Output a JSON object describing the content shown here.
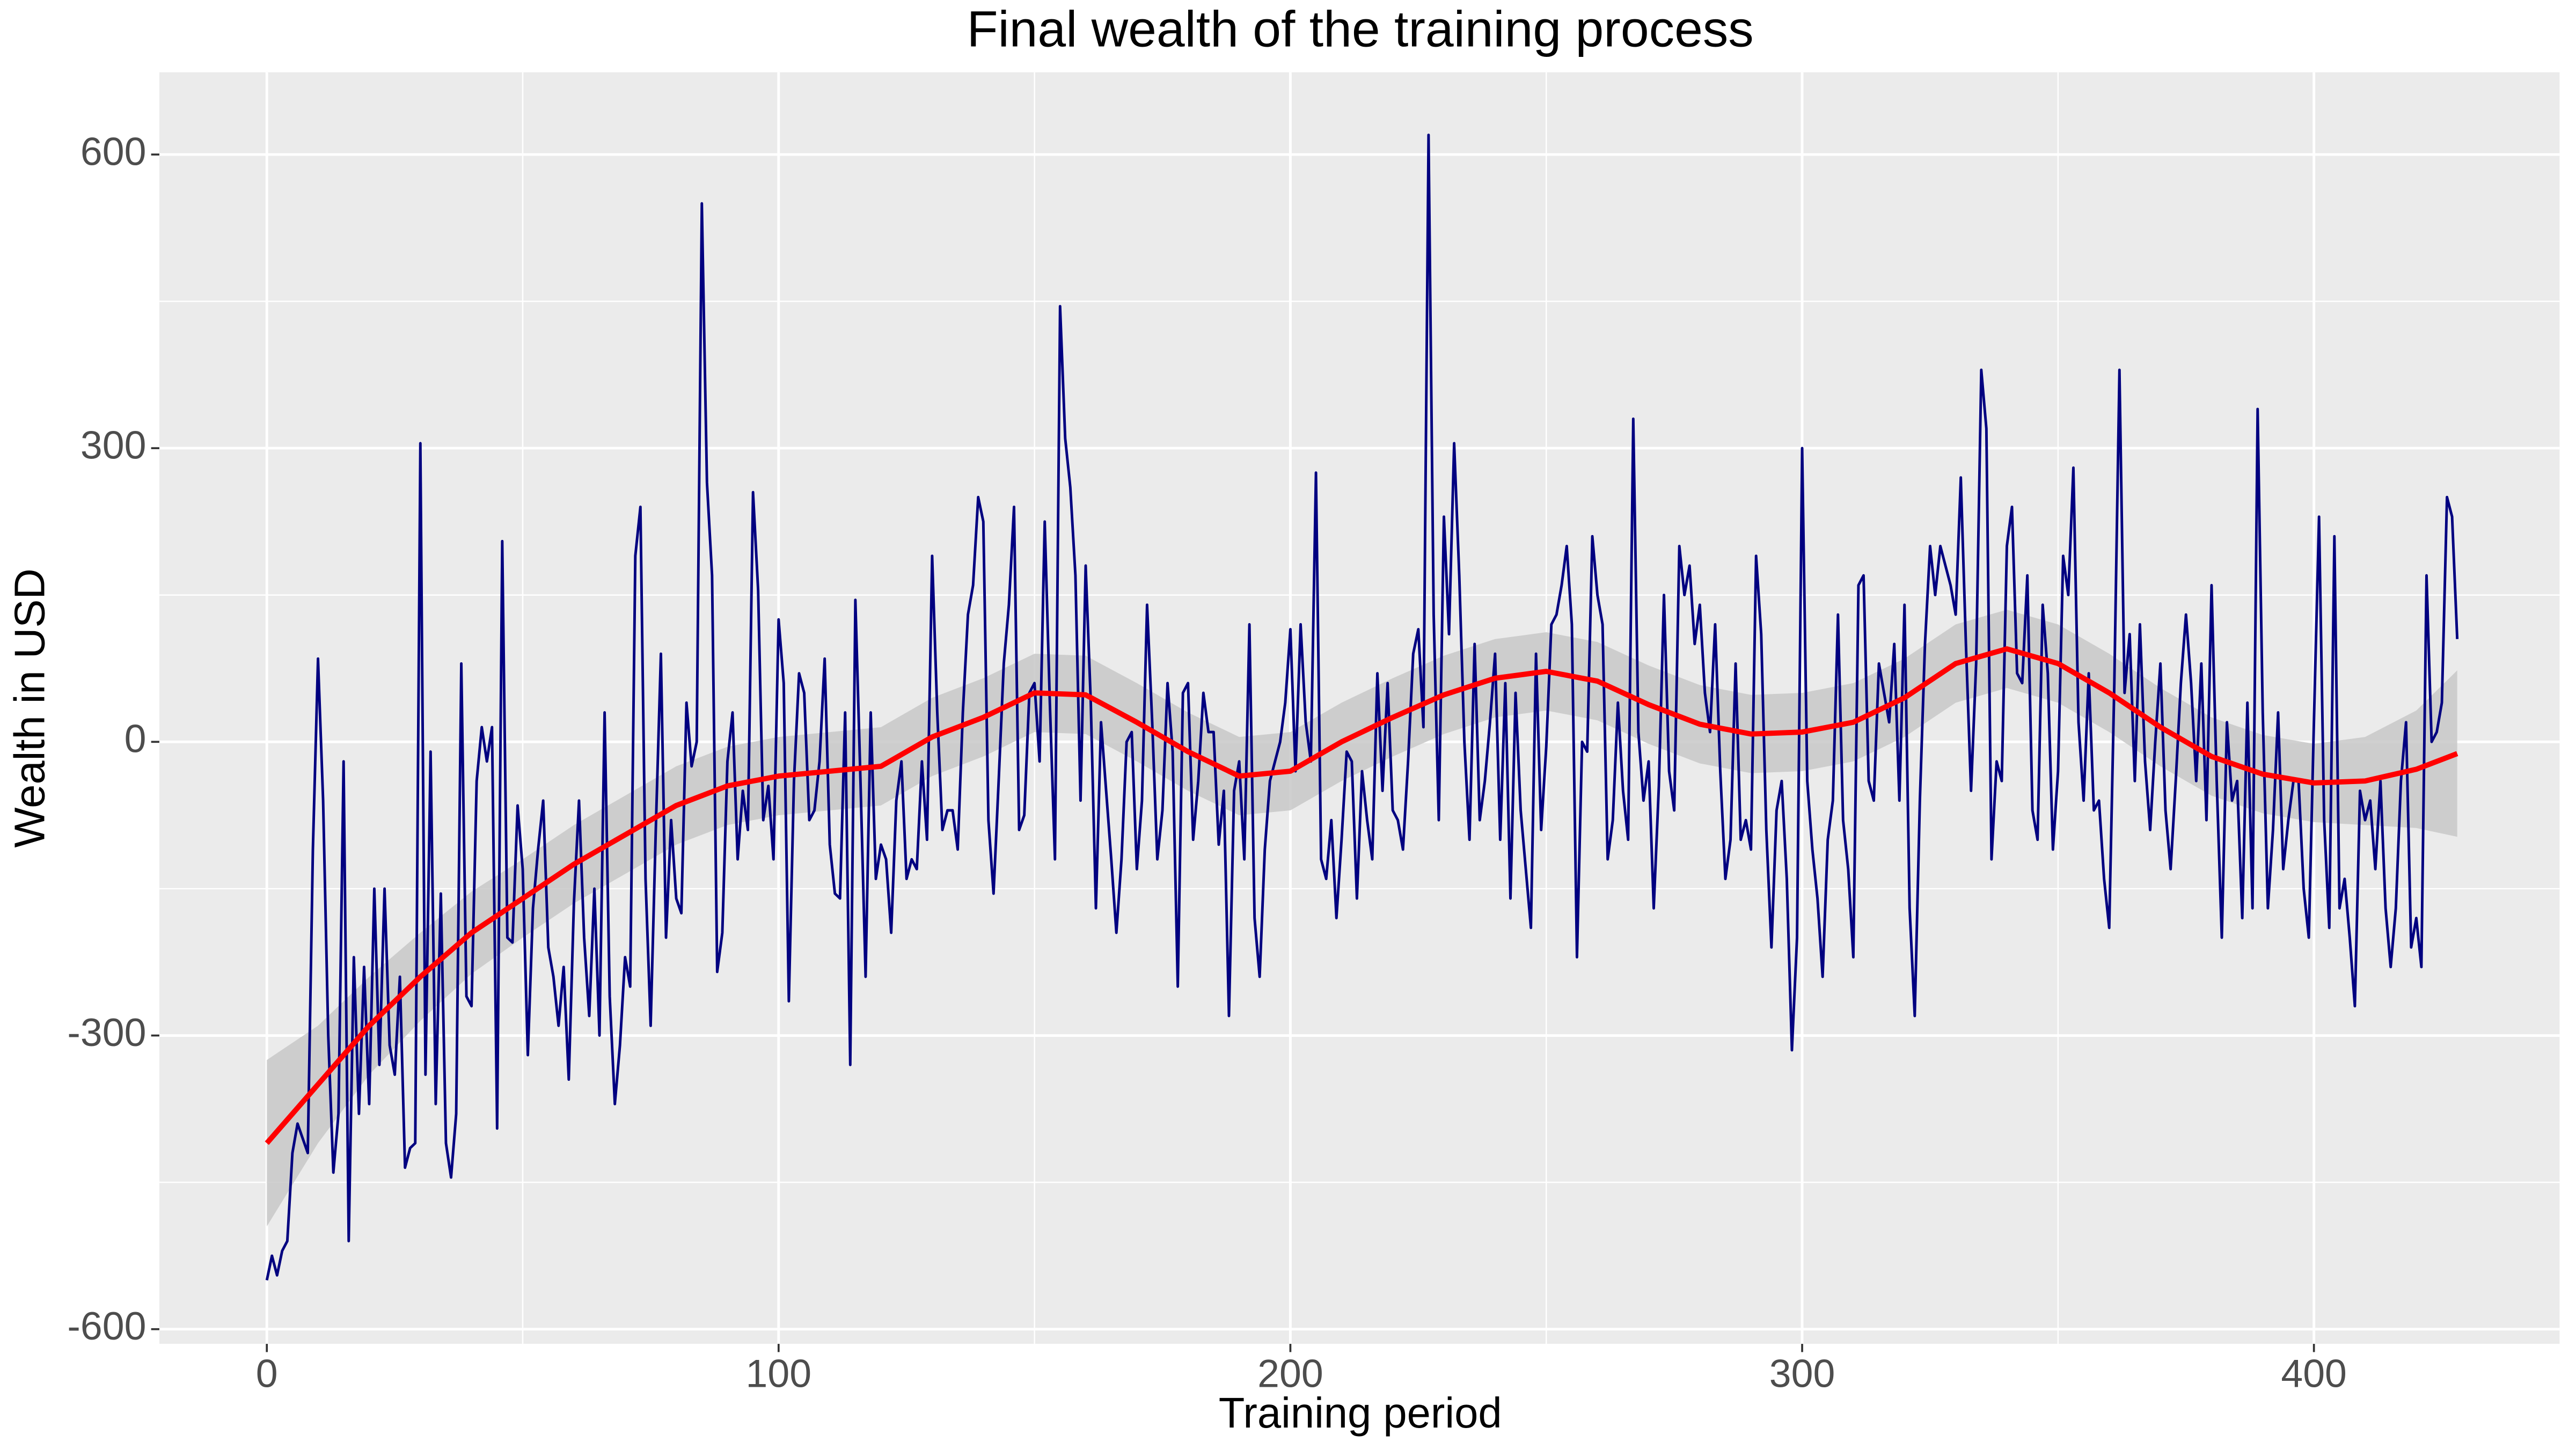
{
  "chart_data": {
    "type": "line",
    "title": "Final wealth of the training process",
    "x_label": "Training period",
    "y_label": "Wealth in USD",
    "xlim": [
      -21,
      448
    ],
    "ylim": [
      -615,
      684
    ],
    "xticks": [
      0,
      100,
      200,
      300,
      400
    ],
    "xminor": [
      50,
      150,
      250,
      350
    ],
    "yticks": [
      -600,
      -300,
      0,
      300,
      600
    ],
    "yminor": [
      -450,
      -150,
      150,
      450
    ],
    "grid": true,
    "background": "#ebebeb",
    "x": [
      0,
      1,
      2,
      3,
      4,
      5,
      6,
      7,
      8,
      9,
      10,
      11,
      12,
      13,
      14,
      15,
      16,
      17,
      18,
      19,
      20,
      21,
      22,
      23,
      24,
      25,
      26,
      27,
      28,
      29,
      30,
      31,
      32,
      33,
      34,
      35,
      36,
      37,
      38,
      39,
      40,
      41,
      42,
      43,
      44,
      45,
      46,
      47,
      48,
      49,
      50,
      51,
      52,
      53,
      54,
      55,
      56,
      57,
      58,
      59,
      60,
      61,
      62,
      63,
      64,
      65,
      66,
      67,
      68,
      69,
      70,
      71,
      72,
      73,
      74,
      75,
      76,
      77,
      78,
      79,
      80,
      81,
      82,
      83,
      84,
      85,
      86,
      87,
      88,
      89,
      90,
      91,
      92,
      93,
      94,
      95,
      96,
      97,
      98,
      99,
      100,
      101,
      102,
      103,
      104,
      105,
      106,
      107,
      108,
      109,
      110,
      111,
      112,
      113,
      114,
      115,
      116,
      117,
      118,
      119,
      120,
      121,
      122,
      123,
      124,
      125,
      126,
      127,
      128,
      129,
      130,
      131,
      132,
      133,
      134,
      135,
      136,
      137,
      138,
      139,
      140,
      141,
      142,
      143,
      144,
      145,
      146,
      147,
      148,
      149,
      150,
      151,
      152,
      153,
      154,
      155,
      156,
      157,
      158,
      159,
      160,
      161,
      162,
      163,
      164,
      165,
      166,
      167,
      168,
      169,
      170,
      171,
      172,
      173,
      174,
      175,
      176,
      177,
      178,
      179,
      180,
      181,
      182,
      183,
      184,
      185,
      186,
      187,
      188,
      189,
      190,
      191,
      192,
      193,
      194,
      195,
      196,
      197,
      198,
      199,
      200,
      201,
      202,
      203,
      204,
      205,
      206,
      207,
      208,
      209,
      210,
      211,
      212,
      213,
      214,
      215,
      216,
      217,
      218,
      219,
      220,
      221,
      222,
      223,
      224,
      225,
      226,
      227,
      228,
      229,
      230,
      231,
      232,
      233,
      234,
      235,
      236,
      237,
      238,
      239,
      240,
      241,
      242,
      243,
      244,
      245,
      246,
      247,
      248,
      249,
      250,
      251,
      252,
      253,
      254,
      255,
      256,
      257,
      258,
      259,
      260,
      261,
      262,
      263,
      264,
      265,
      266,
      267,
      268,
      269,
      270,
      271,
      272,
      273,
      274,
      275,
      276,
      277,
      278,
      279,
      280,
      281,
      282,
      283,
      284,
      285,
      286,
      287,
      288,
      289,
      290,
      291,
      292,
      293,
      294,
      295,
      296,
      297,
      298,
      299,
      300,
      301,
      302,
      303,
      304,
      305,
      306,
      307,
      308,
      309,
      310,
      311,
      312,
      313,
      314,
      315,
      316,
      317,
      318,
      319,
      320,
      321,
      322,
      323,
      324,
      325,
      326,
      327,
      328,
      329,
      330,
      331,
      332,
      333,
      334,
      335,
      336,
      337,
      338,
      339,
      340,
      341,
      342,
      343,
      344,
      345,
      346,
      347,
      348,
      349,
      350,
      351,
      352,
      353,
      354,
      355,
      356,
      357,
      358,
      359,
      360,
      361,
      362,
      363,
      364,
      365,
      366,
      367,
      368,
      369,
      370,
      371,
      372,
      373,
      374,
      375,
      376,
      377,
      378,
      379,
      380,
      381,
      382,
      383,
      384,
      385,
      386,
      387,
      388,
      389,
      390,
      391,
      392,
      393,
      394,
      395,
      396,
      397,
      398,
      399,
      400,
      401,
      402,
      403,
      404,
      405,
      406,
      407,
      408,
      409,
      410,
      411,
      412,
      413,
      414,
      415,
      416,
      417,
      418,
      419,
      420,
      421,
      422,
      423,
      424,
      425,
      426,
      427,
      428
    ],
    "series": [
      {
        "color": "#000080",
        "values": [
          -550,
          -525,
          -545,
          -520,
          -510,
          -420,
          -390,
          -405,
          -420,
          -110,
          85,
          -60,
          -300,
          -440,
          -380,
          -20,
          -510,
          -220,
          -380,
          -230,
          -370,
          -150,
          -330,
          -150,
          -310,
          -340,
          -240,
          -435,
          -415,
          -410,
          305,
          -340,
          -10,
          -370,
          -155,
          -410,
          -445,
          -380,
          80,
          -260,
          -270,
          -40,
          15,
          -20,
          15,
          -395,
          205,
          -200,
          -205,
          -65,
          -130,
          -320,
          -170,
          -110,
          -60,
          -210,
          -240,
          -290,
          -230,
          -345,
          -165,
          -60,
          -200,
          -280,
          -150,
          -300,
          30,
          -260,
          -370,
          -310,
          -220,
          -250,
          190,
          240,
          -140,
          -290,
          -90,
          90,
          -200,
          -80,
          -160,
          -175,
          40,
          -25,
          0,
          550,
          265,
          170,
          -235,
          -195,
          -20,
          30,
          -120,
          -50,
          -90,
          255,
          155,
          -80,
          -45,
          -120,
          125,
          60,
          -265,
          -40,
          70,
          50,
          -80,
          -70,
          -20,
          85,
          -105,
          -155,
          -160,
          30,
          -330,
          145,
          -40,
          -240,
          30,
          -140,
          -105,
          -120,
          -195,
          -60,
          -20,
          -140,
          -120,
          -130,
          -20,
          -100,
          190,
          30,
          -90,
          -70,
          -70,
          -110,
          30,
          130,
          160,
          250,
          225,
          -80,
          -155,
          -40,
          80,
          140,
          240,
          -90,
          -75,
          50,
          60,
          -20,
          225,
          40,
          -120,
          445,
          310,
          260,
          170,
          -60,
          180,
          40,
          -170,
          20,
          -50,
          -120,
          -195,
          -120,
          0,
          10,
          -130,
          -60,
          140,
          20,
          -120,
          -70,
          60,
          -10,
          -250,
          50,
          60,
          -100,
          -40,
          50,
          10,
          10,
          -105,
          -50,
          -280,
          -50,
          -20,
          -120,
          120,
          -180,
          -240,
          -110,
          -40,
          -20,
          0,
          40,
          115,
          -30,
          120,
          20,
          -20,
          275,
          -120,
          -140,
          -80,
          -180,
          -100,
          -10,
          -20,
          -160,
          -30,
          -80,
          -120,
          70,
          -50,
          60,
          -70,
          -80,
          -110,
          -20,
          90,
          115,
          15,
          620,
          130,
          -80,
          230,
          110,
          305,
          170,
          0,
          -100,
          100,
          -80,
          -40,
          20,
          90,
          -100,
          60,
          -160,
          50,
          -70,
          -130,
          -190,
          90,
          -90,
          -5,
          120,
          130,
          160,
          200,
          120,
          -220,
          0,
          -10,
          210,
          150,
          120,
          -120,
          -80,
          40,
          -50,
          -100,
          330,
          10,
          -60,
          -20,
          -170,
          -45,
          150,
          -30,
          -70,
          200,
          150,
          180,
          100,
          140,
          50,
          10,
          120,
          -30,
          -140,
          -100,
          80,
          -100,
          -80,
          -110,
          190,
          110,
          -90,
          -210,
          -70,
          -40,
          -140,
          -315,
          -200,
          300,
          -40,
          -110,
          -160,
          -240,
          -100,
          -60,
          130,
          -80,
          -130,
          -220,
          160,
          170,
          -40,
          -60,
          80,
          50,
          20,
          100,
          -60,
          140,
          -170,
          -280,
          -60,
          100,
          200,
          150,
          200,
          180,
          160,
          130,
          270,
          100,
          -50,
          80,
          380,
          320,
          -120,
          -20,
          -40,
          200,
          240,
          70,
          60,
          170,
          -70,
          -100,
          140,
          70,
          -110,
          -30,
          190,
          150,
          280,
          20,
          -60,
          70,
          -70,
          -60,
          -140,
          -190,
          60,
          380,
          50,
          110,
          -40,
          120,
          -20,
          -90,
          0,
          80,
          -70,
          -130,
          -40,
          60,
          130,
          60,
          -40,
          80,
          -80,
          160,
          -40,
          -200,
          20,
          -60,
          -40,
          -180,
          40,
          -170,
          340,
          30,
          -170,
          -90,
          30,
          -130,
          -80,
          -40,
          -40,
          -150,
          -200,
          20,
          230,
          -80,
          -190,
          210,
          -170,
          -140,
          -200,
          -270,
          -50,
          -80,
          -60,
          -130,
          -40,
          -170,
          -230,
          -170,
          -40,
          20,
          -210,
          -180,
          -230,
          170,
          0,
          10,
          40,
          250,
          230,
          105
        ]
      }
    ],
    "smooth": {
      "color": "#ff0000",
      "band_color": "#c8c8c8",
      "x": [
        0,
        10,
        20,
        30,
        40,
        50,
        60,
        70,
        80,
        90,
        100,
        110,
        120,
        130,
        140,
        150,
        160,
        170,
        180,
        190,
        200,
        210,
        220,
        230,
        240,
        250,
        260,
        270,
        280,
        290,
        300,
        310,
        320,
        330,
        340,
        350,
        360,
        370,
        380,
        390,
        400,
        410,
        420,
        428
      ],
      "values": [
        -410,
        -350,
        -290,
        -240,
        -195,
        -160,
        -125,
        -95,
        -65,
        -45,
        -35,
        -30,
        -25,
        5,
        25,
        50,
        48,
        20,
        -10,
        -35,
        -30,
        0,
        25,
        48,
        65,
        72,
        62,
        38,
        18,
        8,
        10,
        20,
        45,
        80,
        95,
        80,
        50,
        15,
        -15,
        -33,
        -42,
        -40,
        -28,
        -12
      ],
      "lower": [
        -495,
        -410,
        -340,
        -285,
        -237,
        -200,
        -165,
        -135,
        -105,
        -85,
        -75,
        -70,
        -65,
        -35,
        -15,
        10,
        8,
        -20,
        -50,
        -75,
        -70,
        -40,
        -15,
        8,
        25,
        32,
        22,
        -2,
        -22,
        -32,
        -30,
        -20,
        5,
        40,
        55,
        40,
        10,
        -25,
        -55,
        -73,
        -82,
        -85,
        -88,
        -97
      ],
      "upper": [
        -325,
        -290,
        -240,
        -195,
        -153,
        -120,
        -85,
        -55,
        -25,
        -5,
        5,
        10,
        15,
        45,
        65,
        90,
        88,
        60,
        30,
        5,
        10,
        40,
        65,
        88,
        105,
        112,
        102,
        78,
        58,
        48,
        50,
        60,
        85,
        120,
        135,
        120,
        90,
        55,
        25,
        7,
        -2,
        5,
        32,
        73
      ]
    }
  }
}
